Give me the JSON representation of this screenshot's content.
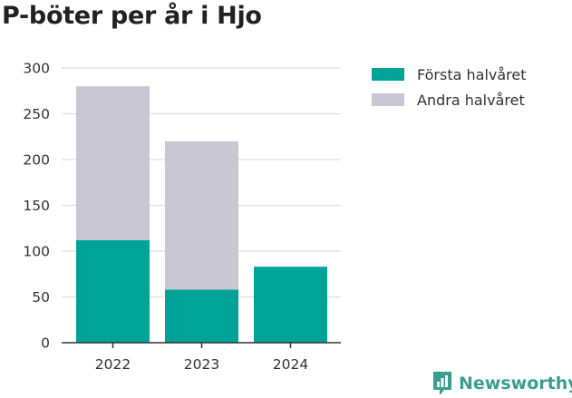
{
  "title": "P-böter per år i Hjo",
  "brand": {
    "name": "Newsworthy",
    "icon": "newsworthy-logo-icon",
    "color": "#3a9e8f"
  },
  "chart_data": {
    "type": "bar",
    "stacked": true,
    "title": "P-böter per år i Hjo",
    "xlabel": "",
    "ylabel": "",
    "categories": [
      "2022",
      "2023",
      "2024"
    ],
    "series": [
      {
        "name": "Första halvåret",
        "color": "#00a398",
        "values": [
          112,
          58,
          83
        ]
      },
      {
        "name": "Andra halvåret",
        "color": "#c8c7d2",
        "values": [
          168,
          162,
          0
        ]
      }
    ],
    "ylim": [
      0,
      300
    ],
    "yticks": [
      "0",
      "50",
      "100",
      "150",
      "200",
      "250",
      "300"
    ],
    "grid": true,
    "legend": "top-right"
  }
}
